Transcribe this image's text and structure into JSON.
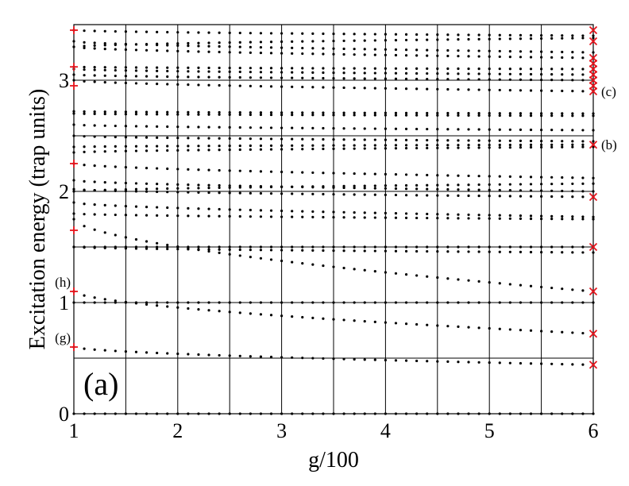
{
  "chart_data": {
    "type": "scatter",
    "xlabel": "g/100",
    "ylabel": "Excitation energy (trap units)",
    "panel_label": "(a)",
    "xlim": [
      1,
      6
    ],
    "ylim": [
      0,
      3.5
    ],
    "x_ticks": [
      "1",
      "2",
      "3",
      "4",
      "5",
      "6"
    ],
    "y_ticks": [
      "0",
      "1",
      "2",
      "3"
    ],
    "grid": true,
    "annotations": [
      {
        "text": "(c)",
        "x": 6,
        "y": 2.9
      },
      {
        "text": "(b)",
        "x": 6,
        "y": 2.42
      },
      {
        "text": "(h)",
        "x": 1,
        "y": 1.1
      },
      {
        "text": "(g)",
        "x": 1,
        "y": 0.6
      }
    ],
    "series": [
      {
        "marker": "dot",
        "color": "#000000",
        "levels": [
          [
            0,
            0
          ],
          [
            0.6,
            0.44
          ],
          [
            1.1,
            0.72
          ],
          [
            1.0,
            1.0
          ],
          [
            1.75,
            1.1
          ],
          [
            1.5,
            1.5
          ],
          [
            1.5,
            1.45
          ],
          [
            1.8,
            1.75
          ],
          [
            1.9,
            1.77
          ],
          [
            2.02,
            1.95
          ],
          [
            2.1,
            2.0
          ],
          [
            2.0,
            2.07
          ],
          [
            2.25,
            2.12
          ],
          [
            2.35,
            2.4
          ],
          [
            2.4,
            2.42
          ],
          [
            2.5,
            2.45
          ],
          [
            2.6,
            2.55
          ],
          [
            2.7,
            2.68
          ],
          [
            2.72,
            2.7
          ],
          [
            3.0,
            2.9
          ],
          [
            3.05,
            3.0
          ],
          [
            3.1,
            3.05
          ],
          [
            3.12,
            3.1
          ],
          [
            3.3,
            3.2
          ],
          [
            3.35,
            3.25
          ],
          [
            3.45,
            3.4
          ],
          [
            3.3,
            3.38
          ]
        ]
      },
      {
        "marker": "x",
        "color": "#e8141c",
        "name_hint": "",
        "points": [
          [
            6,
            0.44
          ],
          [
            6,
            0.72
          ],
          [
            6,
            1.1
          ],
          [
            6,
            1.5
          ],
          [
            6,
            1.95
          ],
          [
            6,
            2.42
          ],
          [
            6,
            2.9
          ],
          [
            6,
            2.95
          ],
          [
            6,
            3.0
          ],
          [
            6,
            3.05
          ],
          [
            6,
            3.1
          ],
          [
            6,
            3.15
          ],
          [
            6,
            3.2
          ],
          [
            6,
            3.35
          ],
          [
            6,
            3.45
          ]
        ]
      },
      {
        "marker": "plus",
        "color": "#e8141c",
        "points": [
          [
            1,
            0.6
          ],
          [
            1,
            1.1
          ],
          [
            1,
            1.65
          ],
          [
            1,
            2.25
          ],
          [
            1,
            2.95
          ],
          [
            1,
            3.12
          ],
          [
            1,
            3.45
          ]
        ]
      }
    ]
  }
}
